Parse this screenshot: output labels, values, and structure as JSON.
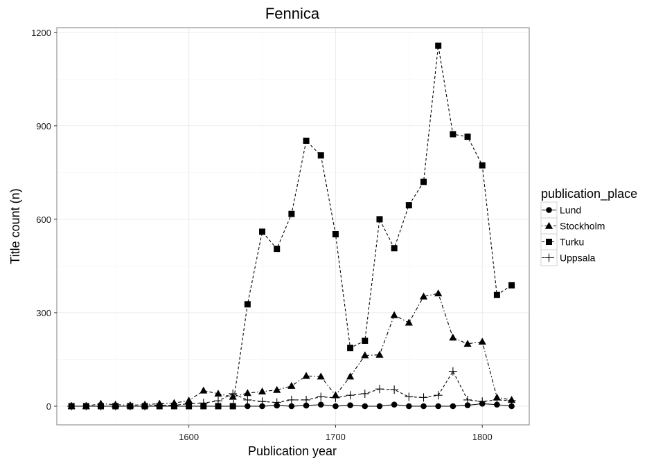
{
  "chart_data": {
    "type": "line",
    "title": "Fennica",
    "xlabel": "Publication year",
    "ylabel": "Title count (n)",
    "xlim": [
      1510,
      1832
    ],
    "ylim": [
      -60,
      1215
    ],
    "xticks": [
      1600,
      1700,
      1800
    ],
    "yticks": [
      0,
      300,
      600,
      900,
      1200
    ],
    "grid": true,
    "legend": {
      "title": "publication_place",
      "placement": "right",
      "entries": [
        "Lund",
        "Stockholm",
        "Turku",
        "Uppsala"
      ]
    },
    "x": [
      1520,
      1530,
      1540,
      1550,
      1560,
      1570,
      1580,
      1590,
      1600,
      1610,
      1620,
      1630,
      1640,
      1650,
      1660,
      1670,
      1680,
      1690,
      1700,
      1710,
      1720,
      1730,
      1740,
      1750,
      1760,
      1770,
      1780,
      1790,
      1800,
      1810,
      1820
    ],
    "series": [
      {
        "name": "Lund",
        "marker": "circle",
        "line": "solid",
        "values": [
          0,
          0,
          0,
          0,
          0,
          0,
          0,
          0,
          0,
          0,
          0,
          0,
          0,
          0,
          2,
          0,
          2,
          5,
          0,
          3,
          0,
          0,
          5,
          0,
          0,
          0,
          0,
          3,
          8,
          5,
          0
        ]
      },
      {
        "name": "Stockholm",
        "marker": "triangle",
        "line": "dotdash",
        "values": [
          0,
          0,
          8,
          5,
          3,
          5,
          8,
          10,
          18,
          50,
          40,
          30,
          42,
          47,
          52,
          65,
          97,
          95,
          35,
          95,
          163,
          165,
          292,
          268,
          352,
          362,
          220,
          200,
          207,
          28,
          20
        ]
      },
      {
        "name": "Turku",
        "marker": "square",
        "line": "dashed",
        "values": [
          0,
          0,
          0,
          0,
          0,
          0,
          0,
          0,
          0,
          0,
          0,
          0,
          327,
          560,
          505,
          617,
          852,
          805,
          552,
          187,
          210,
          600,
          507,
          645,
          720,
          1157,
          873,
          865,
          773,
          357,
          388
        ]
      },
      {
        "name": "Uppsala",
        "marker": "cross",
        "line": "dashed",
        "values": [
          0,
          0,
          0,
          0,
          0,
          0,
          3,
          3,
          8,
          10,
          17,
          40,
          20,
          15,
          12,
          20,
          20,
          30,
          27,
          35,
          40,
          55,
          53,
          30,
          28,
          35,
          112,
          20,
          15,
          20,
          18
        ]
      }
    ]
  }
}
